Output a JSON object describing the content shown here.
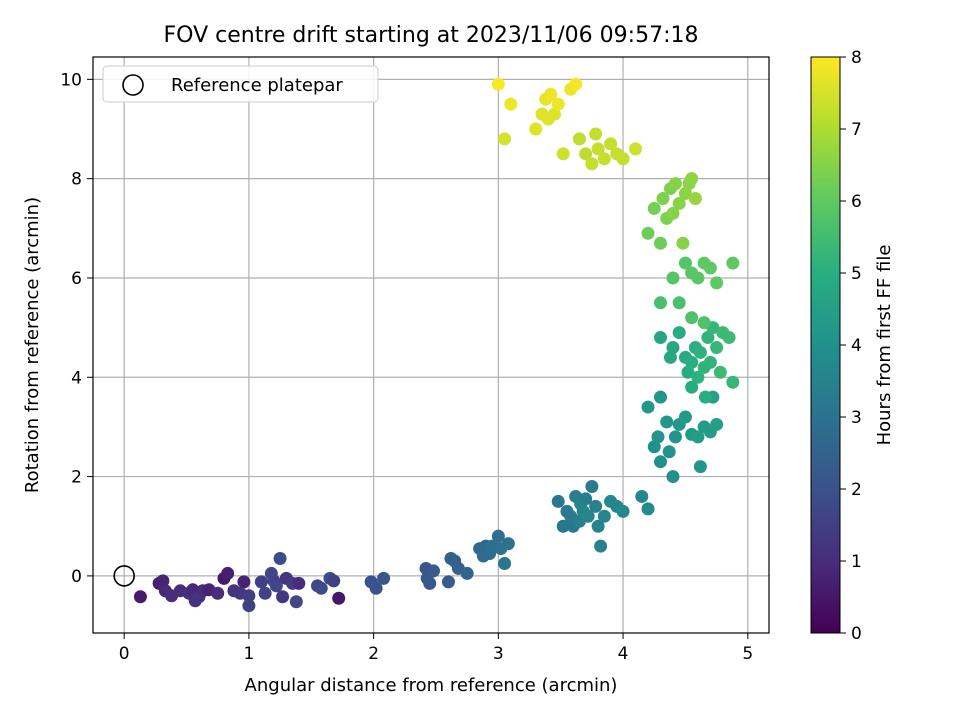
{
  "chart_data": {
    "type": "scatter",
    "title": "FOV centre drift starting at 2023/11/06 09:57:18",
    "xlabel": "Angular distance from reference (arcmin)",
    "ylabel": "Rotation from reference (arcmin)",
    "xlim": [
      -0.25,
      5.17
    ],
    "ylim": [
      -1.15,
      10.45
    ],
    "xticks": [
      0,
      1,
      2,
      3,
      4,
      5
    ],
    "yticks": [
      0,
      2,
      4,
      6,
      8,
      10
    ],
    "grid": true,
    "legend": {
      "position": "top-left",
      "entries": [
        "Reference platepar"
      ]
    },
    "reference_point": {
      "x": 0,
      "y": 0,
      "marker": "open-circle"
    },
    "colorbar": {
      "label": "Hours from first FF file",
      "min": 0,
      "max": 8,
      "ticks": [
        0,
        1,
        2,
        3,
        4,
        5,
        6,
        7,
        8
      ],
      "colormap": "viridis"
    },
    "points": [
      [
        0.13,
        -0.42,
        0.6
      ],
      [
        0.28,
        -0.15,
        0.7
      ],
      [
        0.31,
        -0.1,
        0.8
      ],
      [
        0.33,
        -0.3,
        0.9
      ],
      [
        0.38,
        -0.4,
        1.0
      ],
      [
        0.45,
        -0.3,
        1.0
      ],
      [
        0.52,
        -0.35,
        1.1
      ],
      [
        0.55,
        -0.28,
        0.9
      ],
      [
        0.57,
        -0.5,
        1.1
      ],
      [
        0.6,
        -0.42,
        1.2
      ],
      [
        0.63,
        -0.3,
        1.0
      ],
      [
        0.68,
        -0.28,
        0.8
      ],
      [
        0.75,
        -0.35,
        1.0
      ],
      [
        0.8,
        -0.05,
        0.6
      ],
      [
        0.83,
        0.05,
        0.7
      ],
      [
        0.88,
        -0.3,
        1.2
      ],
      [
        0.93,
        -0.35,
        1.3
      ],
      [
        0.96,
        -0.12,
        0.8
      ],
      [
        1.0,
        -0.4,
        1.4
      ],
      [
        1.0,
        -0.6,
        1.5
      ],
      [
        1.1,
        -0.12,
        1.5
      ],
      [
        1.13,
        -0.35,
        1.6
      ],
      [
        1.18,
        0.05,
        1.7
      ],
      [
        1.2,
        -0.1,
        1.6
      ],
      [
        1.22,
        -0.2,
        1.7
      ],
      [
        1.25,
        0.35,
        1.8
      ],
      [
        1.27,
        -0.42,
        1.3
      ],
      [
        1.3,
        -0.05,
        1.2
      ],
      [
        1.35,
        -0.15,
        1.4
      ],
      [
        1.38,
        -0.52,
        1.7
      ],
      [
        1.4,
        -0.15,
        1.0
      ],
      [
        1.55,
        -0.2,
        1.7
      ],
      [
        1.58,
        -0.25,
        1.8
      ],
      [
        1.65,
        -0.05,
        1.9
      ],
      [
        1.68,
        -0.1,
        1.5
      ],
      [
        1.72,
        -0.45,
        0.5
      ],
      [
        1.98,
        -0.12,
        2.0
      ],
      [
        2.02,
        -0.25,
        2.0
      ],
      [
        2.08,
        -0.05,
        2.1
      ],
      [
        2.42,
        0.15,
        2.1
      ],
      [
        2.43,
        -0.05,
        2.2
      ],
      [
        2.45,
        -0.15,
        2.2
      ],
      [
        2.48,
        0.1,
        2.3
      ],
      [
        2.6,
        -0.12,
        2.3
      ],
      [
        2.62,
        0.35,
        2.4
      ],
      [
        2.65,
        0.3,
        2.4
      ],
      [
        2.68,
        0.15,
        2.5
      ],
      [
        2.75,
        0.05,
        2.6
      ],
      [
        2.85,
        0.55,
        2.7
      ],
      [
        2.88,
        0.4,
        2.8
      ],
      [
        2.9,
        0.6,
        2.7
      ],
      [
        2.93,
        0.45,
        2.8
      ],
      [
        2.95,
        0.6,
        2.9
      ],
      [
        3.0,
        0.8,
        2.9
      ],
      [
        3.02,
        0.55,
        3.0
      ],
      [
        3.05,
        0.25,
        3.1
      ],
      [
        3.08,
        0.65,
        3.0
      ],
      [
        3.48,
        1.5,
        3.1
      ],
      [
        3.52,
        1.0,
        3.2
      ],
      [
        3.55,
        1.3,
        3.3
      ],
      [
        3.58,
        1.2,
        3.3
      ],
      [
        3.6,
        1.0,
        3.2
      ],
      [
        3.62,
        1.6,
        3.4
      ],
      [
        3.65,
        1.1,
        3.4
      ],
      [
        3.66,
        1.45,
        3.5
      ],
      [
        3.68,
        1.3,
        3.5
      ],
      [
        3.7,
        1.55,
        3.4
      ],
      [
        3.72,
        1.2,
        3.6
      ],
      [
        3.75,
        1.8,
        3.3
      ],
      [
        3.78,
        1.4,
        3.5
      ],
      [
        3.8,
        1.0,
        3.6
      ],
      [
        3.82,
        0.6,
        3.5
      ],
      [
        3.85,
        1.2,
        3.6
      ],
      [
        3.9,
        1.5,
        3.7
      ],
      [
        3.95,
        1.4,
        3.6
      ],
      [
        4.0,
        1.3,
        3.7
      ],
      [
        4.15,
        1.6,
        3.7
      ],
      [
        4.2,
        1.35,
        3.8
      ],
      [
        4.2,
        3.4,
        4.2
      ],
      [
        4.25,
        2.6,
        4.0
      ],
      [
        4.28,
        2.8,
        4.1
      ],
      [
        4.3,
        3.6,
        4.2
      ],
      [
        4.3,
        2.3,
        4.0
      ],
      [
        4.35,
        3.1,
        4.2
      ],
      [
        4.37,
        2.5,
        4.1
      ],
      [
        4.4,
        2.0,
        4.0
      ],
      [
        4.42,
        2.8,
        4.1
      ],
      [
        4.45,
        3.05,
        4.2
      ],
      [
        4.5,
        3.2,
        4.3
      ],
      [
        4.55,
        2.85,
        4.3
      ],
      [
        4.6,
        2.8,
        4.4
      ],
      [
        4.62,
        2.2,
        4.2
      ],
      [
        4.65,
        3.0,
        4.4
      ],
      [
        4.7,
        2.9,
        4.4
      ],
      [
        4.72,
        3.6,
        4.5
      ],
      [
        4.75,
        3.05,
        4.5
      ],
      [
        4.3,
        4.8,
        4.7
      ],
      [
        4.38,
        4.4,
        4.8
      ],
      [
        4.4,
        4.6,
        4.8
      ],
      [
        4.45,
        4.9,
        4.9
      ],
      [
        4.5,
        4.4,
        4.9
      ],
      [
        4.52,
        4.1,
        4.9
      ],
      [
        4.55,
        4.3,
        5.0
      ],
      [
        4.55,
        3.8,
        4.9
      ],
      [
        4.58,
        4.6,
        5.0
      ],
      [
        4.6,
        4.0,
        5.1
      ],
      [
        4.62,
        4.5,
        5.1
      ],
      [
        4.65,
        4.2,
        5.2
      ],
      [
        4.66,
        3.6,
        5.0
      ],
      [
        4.68,
        4.8,
        5.2
      ],
      [
        4.7,
        4.3,
        5.2
      ],
      [
        4.72,
        5.0,
        5.3
      ],
      [
        4.75,
        4.6,
        5.3
      ],
      [
        4.78,
        4.1,
        5.4
      ],
      [
        4.8,
        4.9,
        5.4
      ],
      [
        4.85,
        4.8,
        5.4
      ],
      [
        4.88,
        3.9,
        5.3
      ],
      [
        4.3,
        5.5,
        5.6
      ],
      [
        4.45,
        5.5,
        5.6
      ],
      [
        4.55,
        5.2,
        5.7
      ],
      [
        4.65,
        5.1,
        5.7
      ],
      [
        4.4,
        6.0,
        5.8
      ],
      [
        4.5,
        6.3,
        5.8
      ],
      [
        4.55,
        6.1,
        5.9
      ],
      [
        4.6,
        6.0,
        5.9
      ],
      [
        4.65,
        6.3,
        6.0
      ],
      [
        4.7,
        6.2,
        6.0
      ],
      [
        4.75,
        5.9,
        6.0
      ],
      [
        4.88,
        6.3,
        6.0
      ],
      [
        4.2,
        6.9,
        6.2
      ],
      [
        4.25,
        7.4,
        6.3
      ],
      [
        4.3,
        6.7,
        6.2
      ],
      [
        4.32,
        7.6,
        6.4
      ],
      [
        4.35,
        7.2,
        6.4
      ],
      [
        4.38,
        7.8,
        6.4
      ],
      [
        4.4,
        7.3,
        6.5
      ],
      [
        4.42,
        7.9,
        6.5
      ],
      [
        4.45,
        7.5,
        6.5
      ],
      [
        4.48,
        6.7,
        6.5
      ],
      [
        4.5,
        7.7,
        6.6
      ],
      [
        4.53,
        7.9,
        6.6
      ],
      [
        4.55,
        8.0,
        6.6
      ],
      [
        4.58,
        7.6,
        6.7
      ],
      [
        3.65,
        8.8,
        7.2
      ],
      [
        3.7,
        8.5,
        7.2
      ],
      [
        3.75,
        8.3,
        7.3
      ],
      [
        3.78,
        8.9,
        7.3
      ],
      [
        3.8,
        8.6,
        7.3
      ],
      [
        3.85,
        8.4,
        7.3
      ],
      [
        3.9,
        8.7,
        7.3
      ],
      [
        3.95,
        8.5,
        7.3
      ],
      [
        4.0,
        8.4,
        7.3
      ],
      [
        4.1,
        8.6,
        7.4
      ],
      [
        3.52,
        8.5,
        7.4
      ],
      [
        3.3,
        9.0,
        7.6
      ],
      [
        3.35,
        9.3,
        7.6
      ],
      [
        3.4,
        9.2,
        7.6
      ],
      [
        3.45,
        9.3,
        7.6
      ],
      [
        3.38,
        9.6,
        7.7
      ],
      [
        3.42,
        9.7,
        7.8
      ],
      [
        3.48,
        9.5,
        7.8
      ],
      [
        3.58,
        9.8,
        7.8
      ],
      [
        3.62,
        9.9,
        7.9
      ],
      [
        3.1,
        9.5,
        7.8
      ],
      [
        3.05,
        8.8,
        7.5
      ],
      [
        3.0,
        9.9,
        8.0
      ]
    ]
  }
}
